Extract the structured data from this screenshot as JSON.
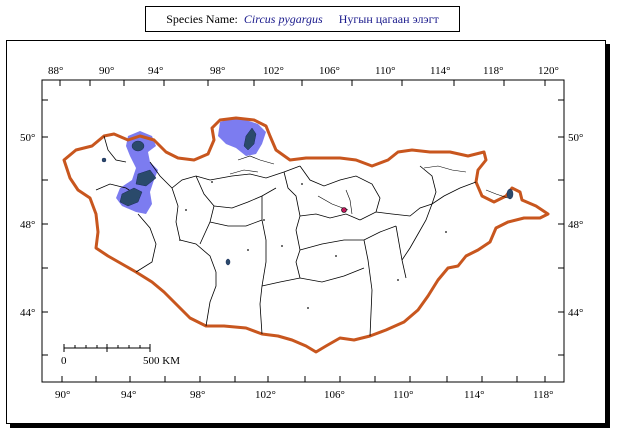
{
  "title": {
    "label": "Species Name:",
    "latin_name": "Circus pygargus",
    "local_name": "Нугын цагаан элэгт"
  },
  "map": {
    "top_longitudes": [
      "88°",
      "90°",
      "94°",
      "98°",
      "102°",
      "106°",
      "110°",
      "114°",
      "118°",
      "120°"
    ],
    "bottom_longitudes": [
      "90°",
      "94°",
      "98°",
      "102°",
      "106°",
      "110°",
      "114°",
      "118°"
    ],
    "left_latitudes": [
      "50°",
      "48°",
      "44°"
    ],
    "right_latitudes": [
      "50°",
      "48°",
      "44°"
    ],
    "scale_bar": {
      "start_label": "0",
      "end_label": "500 KM"
    },
    "colors": {
      "border": "#c8561e",
      "range": "#7c7cf0",
      "water": "#2a4a6b",
      "lines": "#000000"
    }
  }
}
